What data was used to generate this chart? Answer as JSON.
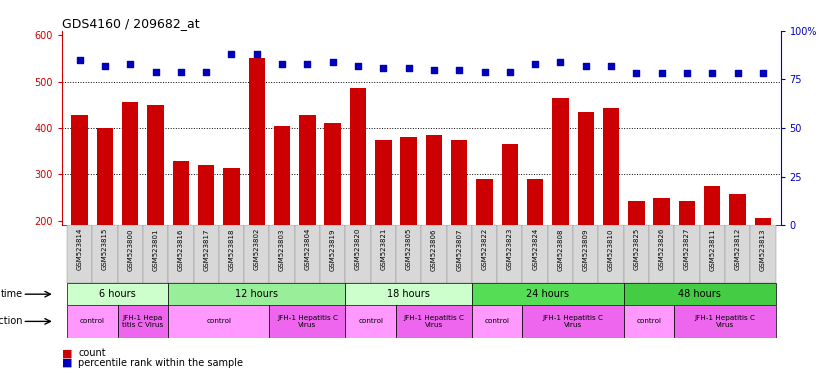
{
  "title": "GDS4160 / 209682_at",
  "samples": [
    "GSM523814",
    "GSM523815",
    "GSM523800",
    "GSM523801",
    "GSM523816",
    "GSM523817",
    "GSM523818",
    "GSM523802",
    "GSM523803",
    "GSM523804",
    "GSM523819",
    "GSM523820",
    "GSM523821",
    "GSM523805",
    "GSM523806",
    "GSM523807",
    "GSM523822",
    "GSM523823",
    "GSM523824",
    "GSM523808",
    "GSM523809",
    "GSM523810",
    "GSM523825",
    "GSM523826",
    "GSM523827",
    "GSM523811",
    "GSM523812",
    "GSM523813"
  ],
  "counts": [
    428,
    400,
    455,
    450,
    328,
    320,
    313,
    550,
    405,
    428,
    410,
    487,
    375,
    380,
    385,
    375,
    290,
    365,
    290,
    465,
    435,
    442,
    242,
    248,
    243,
    275,
    258,
    205
  ],
  "percentiles": [
    85,
    82,
    83,
    79,
    79,
    79,
    88,
    88,
    83,
    83,
    84,
    82,
    81,
    81,
    80,
    80,
    79,
    79,
    83,
    84,
    82,
    82,
    78,
    78,
    78,
    78,
    78,
    78
  ],
  "ylim_left": [
    190,
    610
  ],
  "ylim_right": [
    0,
    100
  ],
  "yticks_left": [
    200,
    300,
    400,
    500,
    600
  ],
  "yticks_right": [
    0,
    25,
    50,
    75,
    100
  ],
  "bar_color": "#cc0000",
  "dot_color": "#0000bb",
  "time_groups": [
    {
      "label": "6 hours",
      "start": 0,
      "end": 4,
      "color": "#ccffcc"
    },
    {
      "label": "12 hours",
      "start": 4,
      "end": 11,
      "color": "#99ee99"
    },
    {
      "label": "18 hours",
      "start": 11,
      "end": 16,
      "color": "#ccffcc"
    },
    {
      "label": "24 hours",
      "start": 16,
      "end": 22,
      "color": "#55dd55"
    },
    {
      "label": "48 hours",
      "start": 22,
      "end": 28,
      "color": "#44cc44"
    }
  ],
  "infection_groups": [
    {
      "label": "control",
      "start": 0,
      "end": 2,
      "color": "#ff99ff"
    },
    {
      "label": "JFH-1 Hepa\ntitis C Virus",
      "start": 2,
      "end": 4,
      "color": "#ee66ee"
    },
    {
      "label": "control",
      "start": 4,
      "end": 8,
      "color": "#ff99ff"
    },
    {
      "label": "JFH-1 Hepatitis C\nVirus",
      "start": 8,
      "end": 11,
      "color": "#ee66ee"
    },
    {
      "label": "control",
      "start": 11,
      "end": 13,
      "color": "#ff99ff"
    },
    {
      "label": "JFH-1 Hepatitis C\nVirus",
      "start": 13,
      "end": 16,
      "color": "#ee66ee"
    },
    {
      "label": "control",
      "start": 16,
      "end": 18,
      "color": "#ff99ff"
    },
    {
      "label": "JFH-1 Hepatitis C\nVirus",
      "start": 18,
      "end": 22,
      "color": "#ee66ee"
    },
    {
      "label": "control",
      "start": 22,
      "end": 24,
      "color": "#ff99ff"
    },
    {
      "label": "JFH-1 Hepatitis C\nVirus",
      "start": 24,
      "end": 28,
      "color": "#ee66ee"
    }
  ],
  "left_axis_color": "#cc0000",
  "right_axis_color": "#0000bb",
  "tick_bg_color": "#cccccc",
  "plot_bg": "#ffffff"
}
